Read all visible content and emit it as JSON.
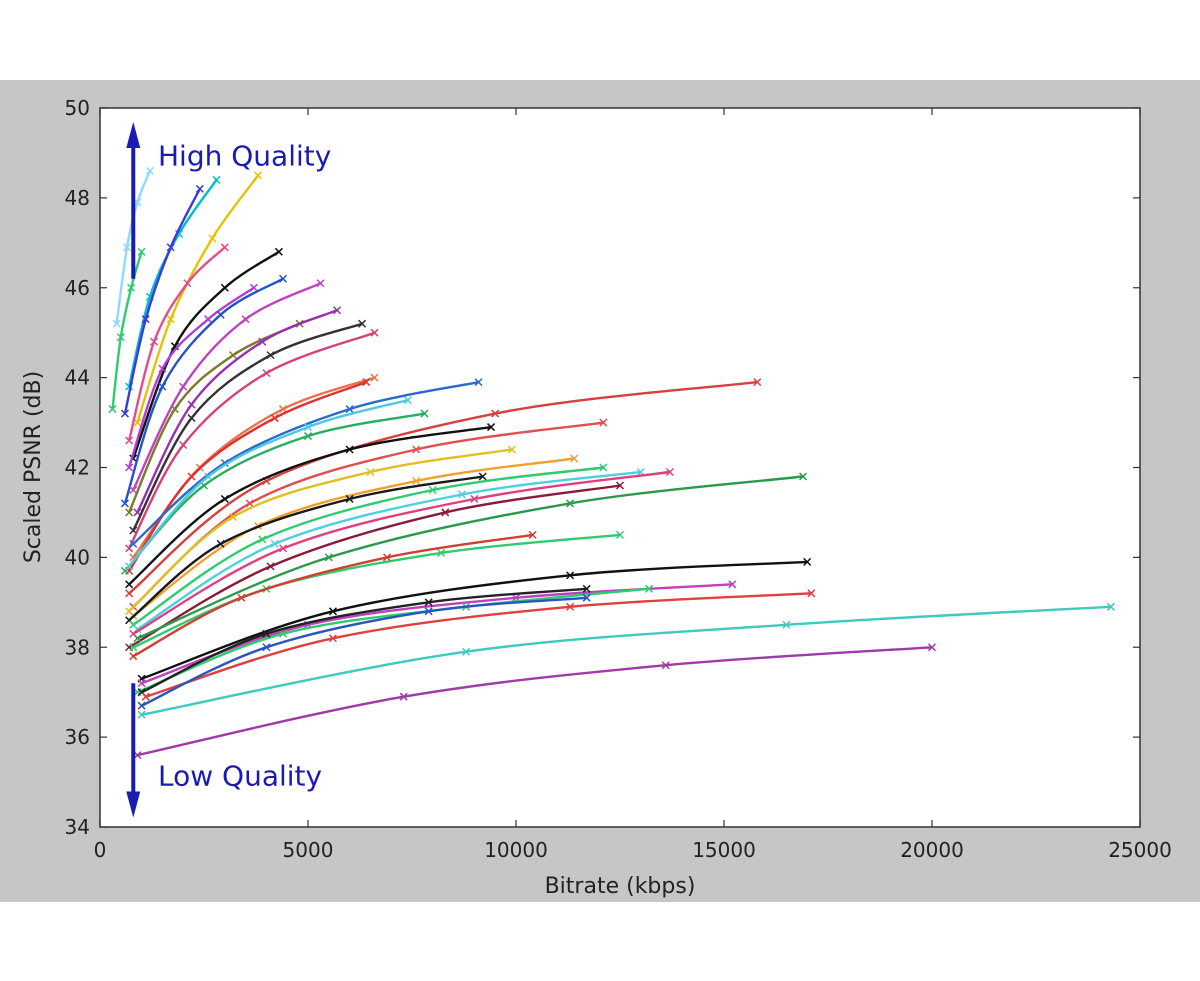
{
  "chart_data": {
    "type": "line",
    "title": "",
    "xlabel": "Bitrate (kbps)",
    "ylabel": "Scaled PSNR (dB)",
    "xlim": [
      0,
      25000
    ],
    "ylim": [
      34,
      50
    ],
    "xticks": [
      "0",
      "5000",
      "10000",
      "15000",
      "20000",
      "25000"
    ],
    "yticks": [
      "34",
      "36",
      "38",
      "40",
      "42",
      "44",
      "46",
      "48",
      "50"
    ],
    "grid": false,
    "legend": "none",
    "annotations": [
      {
        "text": "High Quality",
        "arrow": "up",
        "color": "#1a1ab5"
      },
      {
        "text": "Low Quality",
        "arrow": "down",
        "color": "#1a1ab5"
      }
    ],
    "marker": "x",
    "series": [
      {
        "color": "#8fd8ff",
        "x": [
          400,
          650,
          900,
          1200
        ],
        "y": [
          45.2,
          46.9,
          47.9,
          48.6
        ]
      },
      {
        "color": "#2ecc71",
        "x": [
          300,
          500,
          750,
          1000
        ],
        "y": [
          43.3,
          44.9,
          46.0,
          46.8
        ]
      },
      {
        "color": "#00bcd4",
        "x": [
          700,
          1200,
          1900,
          2800
        ],
        "y": [
          43.8,
          45.8,
          47.2,
          48.4
        ]
      },
      {
        "color": "#3b3bd6",
        "x": [
          600,
          1100,
          1700,
          2400
        ],
        "y": [
          43.2,
          45.3,
          46.9,
          48.2
        ]
      },
      {
        "color": "#e6c200",
        "x": [
          900,
          1700,
          2700,
          3800
        ],
        "y": [
          43.0,
          45.3,
          47.1,
          48.5
        ]
      },
      {
        "color": "#e84a8a",
        "x": [
          700,
          1300,
          2100,
          3000
        ],
        "y": [
          42.6,
          44.8,
          46.1,
          46.9
        ]
      },
      {
        "color": "#111111",
        "x": [
          800,
          1800,
          3000,
          4300
        ],
        "y": [
          42.2,
          44.7,
          46.0,
          46.8
        ]
      },
      {
        "color": "#b23cd6",
        "x": [
          700,
          1500,
          2600,
          3700
        ],
        "y": [
          42.0,
          44.2,
          45.3,
          46.0
        ]
      },
      {
        "color": "#2255cc",
        "x": [
          600,
          1500,
          2900,
          4400
        ],
        "y": [
          41.2,
          43.8,
          45.4,
          46.2
        ]
      },
      {
        "color": "#c040c0",
        "x": [
          800,
          2000,
          3500,
          5300
        ],
        "y": [
          41.5,
          43.8,
          45.3,
          46.1
        ]
      },
      {
        "color": "#7a7a2a",
        "x": [
          700,
          1800,
          3200,
          4800
        ],
        "y": [
          41.0,
          43.3,
          44.5,
          45.2
        ]
      },
      {
        "color": "#9a30b0",
        "x": [
          900,
          2200,
          3900,
          5700
        ],
        "y": [
          41.0,
          43.4,
          44.8,
          45.5
        ]
      },
      {
        "color": "#333333",
        "x": [
          800,
          2200,
          4100,
          6300
        ],
        "y": [
          40.6,
          43.1,
          44.5,
          45.2
        ]
      },
      {
        "color": "#d8407a",
        "x": [
          700,
          2000,
          4000,
          6600
        ],
        "y": [
          40.2,
          42.5,
          44.1,
          45.0
        ]
      },
      {
        "color": "#e8734a",
        "x": [
          800,
          2400,
          4400,
          6600
        ],
        "y": [
          40.0,
          42.0,
          43.3,
          44.0
        ]
      },
      {
        "color": "#e03030",
        "x": [
          700,
          2200,
          4200,
          6400
        ],
        "y": [
          39.7,
          41.8,
          43.1,
          43.9
        ]
      },
      {
        "color": "#2a6acb",
        "x": [
          800,
          3000,
          6000,
          9100
        ],
        "y": [
          40.3,
          42.1,
          43.3,
          43.9
        ]
      },
      {
        "color": "#27ae60",
        "x": [
          600,
          2500,
          5000,
          7800
        ],
        "y": [
          39.7,
          41.6,
          42.7,
          43.2
        ]
      },
      {
        "color": "#4cc9e0",
        "x": [
          700,
          2600,
          5000,
          7400
        ],
        "y": [
          39.8,
          41.8,
          42.9,
          43.5
        ]
      },
      {
        "color": "#d84040",
        "x": [
          700,
          4000,
          9500,
          15800
        ],
        "y": [
          39.2,
          41.7,
          43.2,
          43.9
        ]
      },
      {
        "color": "#111111",
        "x": [
          700,
          3000,
          6000,
          9400
        ],
        "y": [
          39.4,
          41.3,
          42.4,
          42.9
        ]
      },
      {
        "color": "#e05050",
        "x": [
          800,
          3600,
          7600,
          12100
        ],
        "y": [
          38.9,
          41.2,
          42.4,
          43.0
        ]
      },
      {
        "color": "#e0c020",
        "x": [
          700,
          3200,
          6500,
          9900
        ],
        "y": [
          38.8,
          40.9,
          41.9,
          42.4
        ]
      },
      {
        "color": "#f0a030",
        "x": [
          800,
          3800,
          7600,
          11400
        ],
        "y": [
          38.7,
          40.7,
          41.7,
          42.2
        ]
      },
      {
        "color": "#1a1a1a",
        "x": [
          700,
          2900,
          6000,
          9200
        ],
        "y": [
          38.6,
          40.3,
          41.3,
          41.8
        ]
      },
      {
        "color": "#2ecc71",
        "x": [
          800,
          3900,
          8000,
          12100
        ],
        "y": [
          38.5,
          40.4,
          41.5,
          42.0
        ]
      },
      {
        "color": "#4ccfe0",
        "x": [
          900,
          4200,
          8700,
          13000
        ],
        "y": [
          38.4,
          40.3,
          41.4,
          41.9
        ]
      },
      {
        "color": "#e04080",
        "x": [
          800,
          4400,
          9000,
          13700
        ],
        "y": [
          38.3,
          40.2,
          41.3,
          41.9
        ]
      },
      {
        "color": "#8b1a3a",
        "x": [
          700,
          4100,
          8300,
          12500
        ],
        "y": [
          38.0,
          39.8,
          41.0,
          41.6
        ]
      },
      {
        "color": "#2a9a4a",
        "x": [
          900,
          5500,
          11300,
          16900
        ],
        "y": [
          38.2,
          40.0,
          41.2,
          41.8
        ]
      },
      {
        "color": "#2ecc71",
        "x": [
          800,
          4000,
          8200,
          12500
        ],
        "y": [
          38.0,
          39.3,
          40.1,
          40.5
        ]
      },
      {
        "color": "#d04030",
        "x": [
          800,
          3400,
          6900,
          10400
        ],
        "y": [
          37.8,
          39.1,
          40.0,
          40.5
        ]
      },
      {
        "color": "#111111",
        "x": [
          1000,
          5600,
          11300,
          17000
        ],
        "y": [
          37.3,
          38.8,
          39.6,
          39.9
        ]
      },
      {
        "color": "#c040c0",
        "x": [
          1000,
          5000,
          10000,
          15200
        ],
        "y": [
          37.2,
          38.5,
          39.1,
          39.4
        ]
      },
      {
        "color": "#2ecc71",
        "x": [
          900,
          4400,
          8800,
          13200
        ],
        "y": [
          37.0,
          38.3,
          38.9,
          39.3
        ]
      },
      {
        "color": "#222222",
        "x": [
          1000,
          4000,
          7900,
          11700
        ],
        "y": [
          37.0,
          38.3,
          39.0,
          39.3
        ]
      },
      {
        "color": "#e04040",
        "x": [
          1100,
          5600,
          11300,
          17100
        ],
        "y": [
          36.9,
          38.2,
          38.9,
          39.2
        ]
      },
      {
        "color": "#2a55bb",
        "x": [
          1000,
          4000,
          7900,
          11700
        ],
        "y": [
          36.7,
          38.0,
          38.8,
          39.1
        ]
      },
      {
        "color": "#40c9c0",
        "x": [
          1000,
          8800,
          16500,
          24300
        ],
        "y": [
          36.5,
          37.9,
          38.5,
          38.9
        ]
      },
      {
        "color": "#a03aa8",
        "x": [
          900,
          7300,
          13600,
          20000
        ],
        "y": [
          35.6,
          36.9,
          37.6,
          38.0
        ]
      }
    ]
  }
}
